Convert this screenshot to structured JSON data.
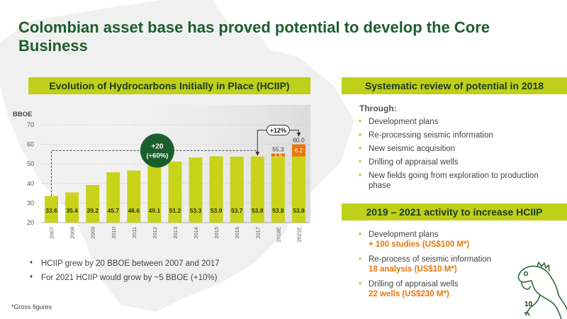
{
  "title": "Colombian asset base has proved potential to develop the Core Business",
  "left_header": "Evolution of Hydrocarbons Initially in Place (HCIIP)",
  "right_header_1": "Systematic review of potential in 2018",
  "right_header_2": "2019 – 2021 activity to increase HCIIP",
  "through_label": "Through:",
  "review_items": [
    "Development plans",
    "Re-processing seismic information",
    "New seismic acquisition",
    "Drilling of appraisal wells",
    "New fields going from exploration to production phase"
  ],
  "activity_items": [
    {
      "text": "Development plans",
      "highlight": "+ 100 studies (US$100 M*)"
    },
    {
      "text": "Re-process of seismic information",
      "highlight": "18 analysis (US$10 M*)"
    },
    {
      "text": "Drilling of appraisal wells",
      "highlight": "22 wells (US$230 M*)"
    }
  ],
  "notes": [
    "HCIIP grew by 20 BBOE between 2007 and 2017",
    "For 2021 HCIIP would grow by ~5 BBOE (+10%)"
  ],
  "footnote": "*Gross figures",
  "page_number": "10",
  "colors": {
    "title_green": "#1b5e2e",
    "header_yellow": "#bfcf1a",
    "bar_yellow": "#c8d31a",
    "increment_orange": "#e8760a",
    "badge_green": "#1b5e2e"
  },
  "icons": [
    "colombia-map-silhouette",
    "iguana-icon"
  ],
  "chart_data": {
    "type": "bar",
    "ylabel": "BBOE",
    "ylim": [
      20,
      70
    ],
    "yticks": [
      20,
      30,
      40,
      50,
      60,
      70
    ],
    "categories": [
      "2007",
      "2008",
      "2009",
      "2010",
      "2011",
      "2012",
      "2013",
      "2014",
      "2015",
      "2016",
      "2017",
      "2018E",
      "2021E"
    ],
    "base_values": [
      33.6,
      35.4,
      39.2,
      45.7,
      46.6,
      49.1,
      51.2,
      53.3,
      53.9,
      53.7,
      53.8,
      53.8,
      53.8
    ],
    "increments": [
      {
        "category": "2018E",
        "value": 1.5,
        "total": 55.3
      },
      {
        "category": "2021E",
        "value": 6.2,
        "total": 60.0
      }
    ],
    "base_labels": [
      "33.6",
      "35.4",
      "39.2",
      "45.7",
      "46.6",
      "49.1",
      "51.2",
      "53.3",
      "53.9",
      "53.7",
      "53.8",
      "53.8",
      "53.8"
    ],
    "increment_labels": [
      "1.5",
      "6.2"
    ],
    "total_labels": [
      "55.3",
      "60.0"
    ],
    "annotations": {
      "growth_badge_line1": "+20",
      "growth_badge_line2": "(+60%)",
      "forecast_badge": "+12%"
    },
    "grid": true,
    "legend": "none"
  }
}
